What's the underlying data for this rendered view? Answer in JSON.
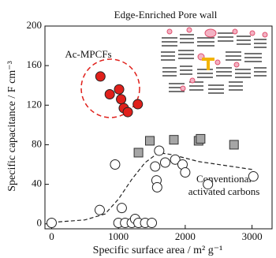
{
  "chart_data": {
    "type": "scatter",
    "title": "Edge-Enriched Pore wall",
    "x_label": "Specific surface area / m² g⁻¹",
    "y_label": "Specific capacitance / F cm⁻³",
    "annotations": [
      "Ac-MPCFs",
      "Conventional",
      "activated carbons"
    ],
    "xlim": [
      -100,
      3300
    ],
    "ylim": [
      -5,
      200
    ],
    "xticks": [
      0,
      1000,
      2000,
      3000
    ],
    "yticks": [
      0,
      40,
      80,
      120,
      160,
      200
    ],
    "series": [
      {
        "color": "#e0201b",
        "marker": "circle",
        "x": [
          730,
          870,
          1010,
          1040,
          1080,
          1140,
          1290
        ],
        "values": [
          149,
          131,
          136,
          126,
          117,
          113,
          121
        ]
      },
      {
        "color": "#a6a6a6",
        "marker": "square",
        "x": [
          1300,
          1470,
          1830,
          2200,
          2230,
          2730
        ],
        "values": [
          72,
          84,
          85,
          84,
          86,
          80
        ]
      },
      {
        "color": "#ffffff",
        "marker": "circle",
        "x": [
          0,
          720,
          950,
          1050,
          1000,
          1100,
          1200,
          1250,
          1300,
          1400,
          1500,
          1610,
          1700,
          1550,
          1570,
          1580,
          1850,
          1960,
          2000,
          2340,
          3020
        ],
        "values": [
          1,
          14,
          60,
          16,
          1,
          1,
          1,
          5,
          1,
          1,
          1,
          74,
          62,
          58,
          44,
          37,
          65,
          60,
          52,
          40,
          48
        ]
      }
    ],
    "trend": {
      "x": [
        100,
        500,
        800,
        1000,
        1200,
        1400,
        1600,
        1800,
        2200,
        2600,
        3000
      ],
      "values": [
        2,
        4,
        10,
        25,
        45,
        62,
        72,
        70,
        63,
        59,
        55
      ]
    }
  }
}
